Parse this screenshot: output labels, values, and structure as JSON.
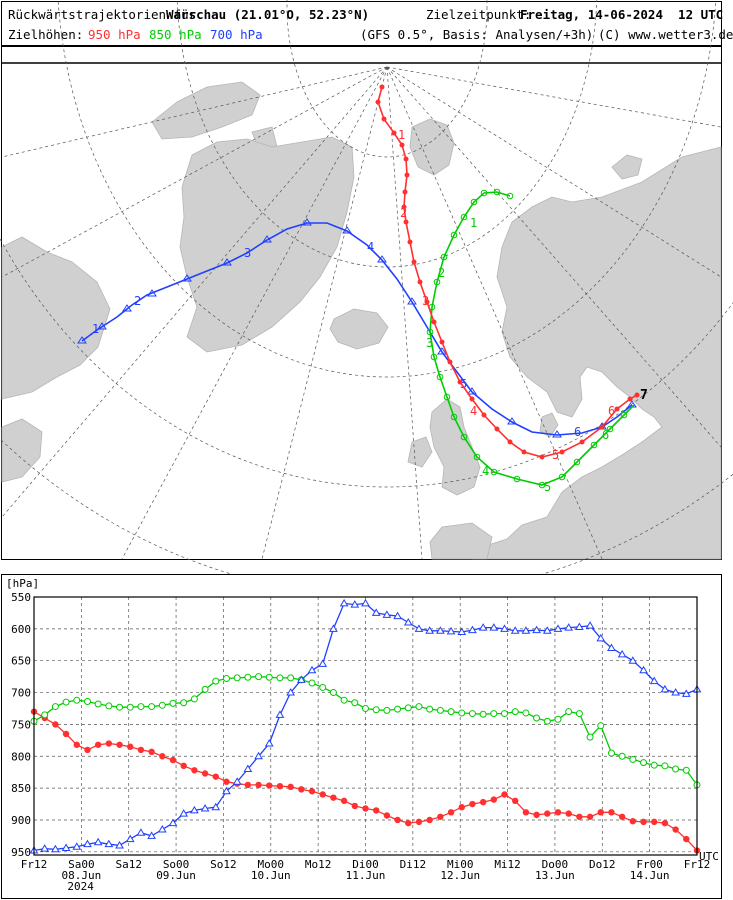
{
  "header": {
    "title_prefix": "Rückwärtstrajektorien für ",
    "title_place": "Warschau (21.01°O, 52.23°N)",
    "target_label": "Zielzeitpunkt:",
    "target_time": "Freitag, 14-06-2024  12 UTC",
    "levels_label": "Zielhöhen:",
    "level_950": "950 hPa",
    "level_850": "850 hPa",
    "level_700": "700 hPa",
    "model_info": "(GFS 0.5°, Basis: Analysen/+3h)",
    "copyright": "(C) www.wetter3.de"
  },
  "colors": {
    "hpa950": "#ff3030",
    "hpa850": "#00cc00",
    "hpa700": "#2040ff",
    "land": "#d0d0d0",
    "sea": "#ffffff"
  },
  "map": {
    "type": "trajectory-map",
    "projection": "polar stereographic",
    "end_marker": "7",
    "labels_950": [
      "1",
      "2",
      "3",
      "4",
      "5",
      "6"
    ],
    "labels_850": [
      "1",
      "2",
      "3",
      "4",
      "5",
      "6"
    ],
    "labels_700": [
      "1",
      "2",
      "3",
      "4",
      "5",
      "6"
    ]
  },
  "chart_data": {
    "type": "line",
    "ylabel": "[hPa]",
    "x_unit": "UTC",
    "y_reverse": true,
    "ylim": [
      550,
      955
    ],
    "yticks": [
      550,
      600,
      650,
      700,
      750,
      800,
      850,
      900,
      950
    ],
    "x_ticks": [
      {
        "label": "Fr12",
        "date": ""
      },
      {
        "label": "Sa00",
        "date": "08.Jun"
      },
      {
        "label": "Sa12",
        "date": ""
      },
      {
        "label": "So00",
        "date": "09.Jun"
      },
      {
        "label": "So12",
        "date": ""
      },
      {
        "label": "Mo00",
        "date": "10.Jun"
      },
      {
        "label": "Mo12",
        "date": ""
      },
      {
        "label": "Di00",
        "date": "11.Jun"
      },
      {
        "label": "Di12",
        "date": ""
      },
      {
        "label": "Mi00",
        "date": "12.Jun"
      },
      {
        "label": "Mi12",
        "date": ""
      },
      {
        "label": "Do00",
        "date": "13.Jun"
      },
      {
        "label": "Do12",
        "date": ""
      },
      {
        "label": "Fr00",
        "date": "14.Jun"
      },
      {
        "label": "Fr12",
        "date": ""
      }
    ],
    "year": "2024",
    "series": [
      {
        "name": "950 hPa",
        "marker": "dot",
        "color": "#ff3030",
        "values": [
          730,
          740,
          750,
          765,
          782,
          790,
          782,
          780,
          782,
          785,
          790,
          793,
          800,
          806,
          815,
          822,
          827,
          832,
          840,
          843,
          845,
          845,
          846,
          847,
          848,
          852,
          855,
          860,
          865,
          870,
          878,
          882,
          885,
          893,
          900,
          905,
          903,
          900,
          895,
          888,
          880,
          875,
          872,
          868,
          860,
          870,
          888,
          892,
          890,
          888,
          890,
          895,
          895,
          888,
          888,
          895,
          902,
          903,
          903,
          905,
          915,
          930,
          948
        ]
      },
      {
        "name": "850 hPa",
        "marker": "circle",
        "color": "#00cc00",
        "values": [
          745,
          735,
          722,
          715,
          712,
          714,
          718,
          721,
          723,
          723,
          722,
          722,
          720,
          717,
          716,
          710,
          695,
          682,
          678,
          677,
          676,
          675,
          676,
          677,
          677,
          680,
          685,
          692,
          700,
          712,
          716,
          725,
          727,
          728,
          726,
          724,
          722,
          726,
          728,
          730,
          732,
          733,
          734,
          733,
          733,
          730,
          732,
          740,
          745,
          742,
          730,
          733,
          770,
          752,
          795,
          800,
          805,
          810,
          814,
          815,
          820,
          822,
          845
        ]
      },
      {
        "name": "700 hPa",
        "marker": "triangle",
        "color": "#2040ff",
        "values": [
          948,
          945,
          946,
          944,
          942,
          938,
          935,
          938,
          940,
          930,
          920,
          925,
          915,
          905,
          890,
          885,
          882,
          880,
          855,
          840,
          820,
          800,
          780,
          735,
          700,
          680,
          665,
          655,
          600,
          560,
          562,
          560,
          575,
          578,
          580,
          590,
          600,
          603,
          603,
          604,
          605,
          602,
          598,
          598,
          600,
          603,
          603,
          602,
          603,
          600,
          598,
          597,
          595,
          615,
          630,
          640,
          650,
          665,
          682,
          695,
          700,
          702,
          695
        ]
      }
    ]
  }
}
